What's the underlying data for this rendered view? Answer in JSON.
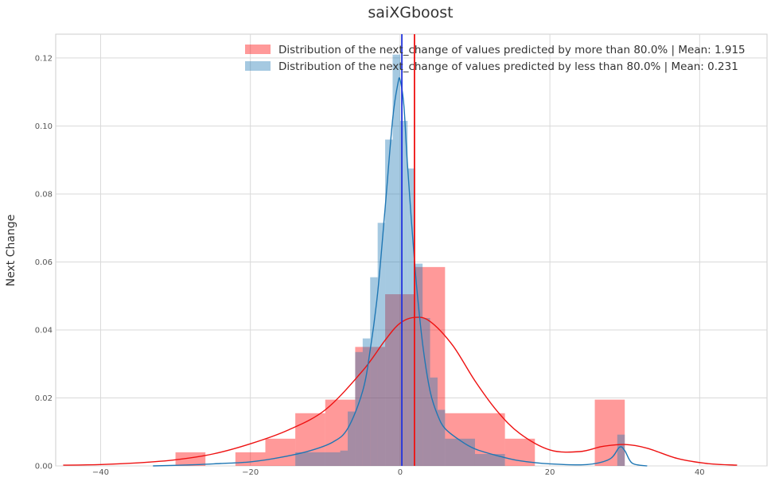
{
  "chart_data": {
    "type": "histogram",
    "title": "saiXGboost",
    "xlabel": "",
    "ylabel": "Next Change",
    "xlim": [
      -46,
      49
    ],
    "ylim": [
      0,
      0.127
    ],
    "x_ticks": [
      -40,
      -20,
      0,
      20,
      40
    ],
    "x_tick_labels": [
      "−40",
      "−20",
      "0",
      "20",
      "40"
    ],
    "y_ticks": [
      0.0,
      0.02,
      0.04,
      0.06,
      0.08,
      0.1,
      0.12
    ],
    "y_tick_labels": [
      "0.00",
      "0.02",
      "0.04",
      "0.06",
      "0.08",
      "0.10",
      "0.12"
    ],
    "grid": true,
    "legend_position": "top-right",
    "series": [
      {
        "name": "Distribution of the next_change of values predicted by more than 80.0% | Mean: 1.915",
        "color": "#ff0000",
        "bar_opacity": 0.4,
        "mean": 1.915,
        "bin_edges": [
          -30,
          -26,
          -22,
          -18,
          -14,
          -10,
          -6,
          -2,
          2,
          6,
          10,
          14,
          18,
          22,
          26,
          30
        ],
        "values": [
          0.004,
          0.0,
          0.004,
          0.008,
          0.0155,
          0.0195,
          0.035,
          0.0505,
          0.0585,
          0.0155,
          0.0155,
          0.008,
          0.0,
          0.0,
          0.0195
        ],
        "kde_x": [
          -45,
          -40,
          -35,
          -30,
          -25,
          -20,
          -15,
          -10,
          -5,
          -2,
          0,
          2,
          4,
          7,
          10,
          13,
          16,
          20,
          24,
          27,
          30,
          33,
          37,
          41,
          45
        ],
        "kde_y": [
          0.0002,
          0.0004,
          0.0009,
          0.0018,
          0.0035,
          0.0065,
          0.0105,
          0.0165,
          0.028,
          0.037,
          0.042,
          0.0437,
          0.0425,
          0.0355,
          0.025,
          0.016,
          0.0095,
          0.0047,
          0.0042,
          0.0057,
          0.0063,
          0.0052,
          0.0022,
          0.0007,
          0.0002
        ]
      },
      {
        "name": "Distribution of the next_change of values predicted by less than 80.0% | Mean: 0.231",
        "color": "#1f77b4",
        "bar_opacity": 0.4,
        "mean": 0.231,
        "bin_edges": [
          -8,
          -7,
          -6,
          -5,
          -4,
          -3,
          -2,
          -1,
          0,
          1,
          2,
          3,
          4,
          5,
          6
        ],
        "values": [
          0.0045,
          0.016,
          0.0335,
          0.0375,
          0.0555,
          0.0715,
          0.096,
          0.121,
          0.1015,
          0.0875,
          0.0595,
          0.0435,
          0.026,
          0.0165
        ],
        "extra_bars": [
          {
            "x0": -14,
            "x1": -8,
            "y": 0.004
          },
          {
            "x0": 6,
            "x1": 10,
            "y": 0.008
          },
          {
            "x0": 10,
            "x1": 14,
            "y": 0.0035
          },
          {
            "x0": 29,
            "x1": 30,
            "y": 0.0092
          }
        ],
        "kde_x": [
          -33,
          -28,
          -24,
          -20,
          -16,
          -12,
          -9,
          -7,
          -5,
          -4,
          -3,
          -2,
          -1,
          -0.3,
          0,
          0.5,
          1,
          2,
          3,
          4,
          5,
          6,
          8,
          10,
          13,
          16,
          20,
          25,
          28,
          29.3,
          30,
          31,
          33
        ],
        "kde_y": [
          0.0,
          0.0003,
          0.0007,
          0.0012,
          0.0025,
          0.0045,
          0.007,
          0.011,
          0.022,
          0.034,
          0.051,
          0.076,
          0.102,
          0.1125,
          0.1135,
          0.106,
          0.088,
          0.058,
          0.036,
          0.022,
          0.015,
          0.011,
          0.0075,
          0.005,
          0.003,
          0.0015,
          0.0006,
          0.0004,
          0.002,
          0.0055,
          0.0045,
          0.0008,
          0.0
        ]
      }
    ]
  }
}
